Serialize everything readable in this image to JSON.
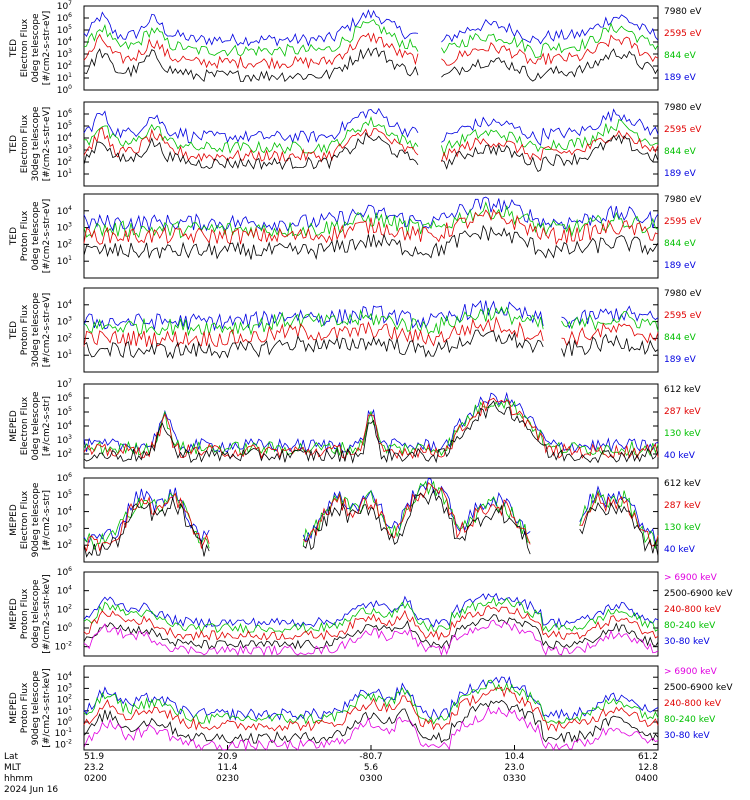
{
  "chart_data": [
    {
      "type": "line",
      "ylabel": [
        "TED",
        "Electron Flux",
        "0deg telescope",
        "[#/cm2-s-str-eV]"
      ],
      "y_scale": "log",
      "ylim_exp": [
        0,
        7
      ],
      "tick_exps": [
        0,
        1,
        2,
        3,
        4,
        5,
        6,
        7
      ],
      "legend": [
        {
          "label": "7980 eV",
          "color": "#000000"
        },
        {
          "label": "2595 eV",
          "color": "#e00000"
        },
        {
          "label": "844 eV",
          "color": "#00c000"
        },
        {
          "label": "189 eV",
          "color": "#0000e0"
        }
      ],
      "series": [
        {
          "color": "#0000e0",
          "level": 4.5,
          "profile": "ted_e"
        },
        {
          "color": "#00c000",
          "level": 3.6,
          "profile": "ted_e"
        },
        {
          "color": "#e00000",
          "level": 2.6,
          "profile": "ted_e"
        },
        {
          "color": "#000000",
          "level": 1.5,
          "profile": "ted_e"
        }
      ]
    },
    {
      "type": "line",
      "ylabel": [
        "TED",
        "Electron Flux",
        "30deg telescope",
        "[#/cm2-s-str-eV]"
      ],
      "y_scale": "log",
      "ylim_exp": [
        0,
        7
      ],
      "tick_exps": [
        1,
        2,
        3,
        4,
        5,
        6
      ],
      "legend": [
        {
          "label": "7980 eV",
          "color": "#000000"
        },
        {
          "label": "2595 eV",
          "color": "#e00000"
        },
        {
          "label": "844 eV",
          "color": "#00c000"
        },
        {
          "label": "189 eV",
          "color": "#0000e0"
        }
      ],
      "series": [
        {
          "color": "#0000e0",
          "level": 4.4,
          "profile": "ted_e"
        },
        {
          "color": "#00c000",
          "level": 3.5,
          "profile": "ted_e"
        },
        {
          "color": "#e00000",
          "level": 2.8,
          "profile": "ted_e"
        },
        {
          "color": "#000000",
          "level": 2.2,
          "profile": "ted_e"
        }
      ]
    },
    {
      "type": "line",
      "ylabel": [
        "TED",
        "Proton Flux",
        "0deg telescope",
        "[#/cm2-s-str-eV]"
      ],
      "y_scale": "log",
      "ylim_exp": [
        0,
        5
      ],
      "tick_exps": [
        1,
        2,
        3,
        4
      ],
      "legend": [
        {
          "label": "7980 eV",
          "color": "#000000"
        },
        {
          "label": "2595 eV",
          "color": "#e00000"
        },
        {
          "label": "844 eV",
          "color": "#00c000"
        },
        {
          "label": "189 eV",
          "color": "#0000e0"
        }
      ],
      "series": [
        {
          "color": "#0000e0",
          "level": 3.3,
          "profile": "ted_p"
        },
        {
          "color": "#00c000",
          "level": 2.9,
          "profile": "ted_p"
        },
        {
          "color": "#e00000",
          "level": 2.5,
          "profile": "ted_p"
        },
        {
          "color": "#000000",
          "level": 1.6,
          "profile": "ted_p"
        }
      ]
    },
    {
      "type": "line",
      "ylabel": [
        "TED",
        "Proton Flux",
        "30deg telescope",
        "[#/cm2-s-str-eV]"
      ],
      "y_scale": "log",
      "ylim_exp": [
        0,
        5
      ],
      "tick_exps": [
        1,
        2,
        3,
        4
      ],
      "legend": [
        {
          "label": "7980 eV",
          "color": "#000000"
        },
        {
          "label": "2595 eV",
          "color": "#e00000"
        },
        {
          "label": "844 eV",
          "color": "#00c000"
        },
        {
          "label": "189 eV",
          "color": "#0000e0"
        }
      ],
      "series": [
        {
          "color": "#0000e0",
          "level": 3.0,
          "profile": "ted_p30"
        },
        {
          "color": "#00c000",
          "level": 2.7,
          "profile": "ted_p30"
        },
        {
          "color": "#e00000",
          "level": 2.0,
          "profile": "ted_p30"
        },
        {
          "color": "#000000",
          "level": 1.3,
          "profile": "ted_p30"
        }
      ]
    },
    {
      "type": "line",
      "ylabel": [
        "MEPED",
        "Electron Flux",
        "0deg telescope",
        "[#/cm2-s-str]"
      ],
      "y_scale": "log",
      "ylim_exp": [
        1,
        7
      ],
      "tick_exps": [
        2,
        3,
        4,
        5,
        6,
        7
      ],
      "legend": [
        {
          "label": "612 keV",
          "color": "#000000"
        },
        {
          "label": "287 keV",
          "color": "#e00000"
        },
        {
          "label": "130 keV",
          "color": "#00c000"
        },
        {
          "label": "40 keV",
          "color": "#0000e0"
        }
      ],
      "series": [
        {
          "color": "#0000e0",
          "level": 2.6,
          "profile": "meped_e0"
        },
        {
          "color": "#00c000",
          "level": 2.4,
          "profile": "meped_e0"
        },
        {
          "color": "#e00000",
          "level": 2.2,
          "profile": "meped_e0"
        },
        {
          "color": "#000000",
          "level": 1.9,
          "profile": "meped_e0"
        }
      ]
    },
    {
      "type": "line",
      "ylabel": [
        "MEPED",
        "Electron Flux",
        "90deg telescope",
        "[#/cm2-s-str]"
      ],
      "y_scale": "log",
      "ylim_exp": [
        1,
        6
      ],
      "tick_exps": [
        2,
        3,
        4,
        5,
        6
      ],
      "legend": [
        {
          "label": "612 keV",
          "color": "#000000"
        },
        {
          "label": "287 keV",
          "color": "#e00000"
        },
        {
          "label": "130 keV",
          "color": "#00c000"
        },
        {
          "label": "40 keV",
          "color": "#0000e0"
        }
      ],
      "series": [
        {
          "color": "#0000e0",
          "level": 2.4,
          "profile": "meped_e90"
        },
        {
          "color": "#00c000",
          "level": 2.2,
          "profile": "meped_e90"
        },
        {
          "color": "#e00000",
          "level": 2.1,
          "profile": "meped_e90"
        },
        {
          "color": "#000000",
          "level": 1.7,
          "profile": "meped_e90"
        }
      ]
    },
    {
      "type": "line",
      "ylabel": [
        "MEPED",
        "Proton Flux",
        "0deg telescope",
        "[#/cm2-s-str-keV]"
      ],
      "y_scale": "log",
      "ylim_exp": [
        -3,
        6
      ],
      "tick_exps": [
        -2,
        0,
        2,
        4,
        6
      ],
      "legend": [
        {
          "label": "> 6900 keV",
          "color": "#e000e0"
        },
        {
          "label": "2500-6900 keV",
          "color": "#000000"
        },
        {
          "label": "240-800 keV",
          "color": "#e00000"
        },
        {
          "label": "80-240 keV",
          "color": "#00c000"
        },
        {
          "label": "30-80 keV",
          "color": "#0000e0"
        }
      ],
      "series": [
        {
          "color": "#0000e0",
          "level": 0.6,
          "profile": "meped_p0"
        },
        {
          "color": "#00c000",
          "level": 0.0,
          "profile": "meped_p0"
        },
        {
          "color": "#e00000",
          "level": -0.8,
          "profile": "meped_p0"
        },
        {
          "color": "#000000",
          "level": -1.8,
          "profile": "meped_p0"
        },
        {
          "color": "#e000e0",
          "level": -2.4,
          "profile": "meped_p0"
        }
      ]
    },
    {
      "type": "line",
      "ylabel": [
        "MEPED",
        "Proton Flux",
        "90deg telescope",
        "[#/cm2-s-str-keV]"
      ],
      "y_scale": "log",
      "ylim_exp": [
        -2.5,
        5
      ],
      "tick_exps": [
        -2,
        -1,
        0,
        1,
        2,
        3,
        4
      ],
      "legend": [
        {
          "label": "> 6900 keV",
          "color": "#e000e0"
        },
        {
          "label": "2500-6900 keV",
          "color": "#000000"
        },
        {
          "label": "240-800 keV",
          "color": "#e00000"
        },
        {
          "label": "80-240 keV",
          "color": "#00c000"
        },
        {
          "label": "30-80 keV",
          "color": "#0000e0"
        }
      ],
      "series": [
        {
          "color": "#0000e0",
          "level": 0.7,
          "profile": "meped_p90"
        },
        {
          "color": "#00c000",
          "level": 0.3,
          "profile": "meped_p90"
        },
        {
          "color": "#e00000",
          "level": -0.3,
          "profile": "meped_p90"
        },
        {
          "color": "#000000",
          "level": -1.4,
          "profile": "meped_p90"
        },
        {
          "color": "#e000e0",
          "level": -2.1,
          "profile": "meped_p90"
        }
      ]
    }
  ],
  "xaxis": {
    "row_labels": [
      "Lat",
      "MLT",
      "hhmm",
      "2024 Jun 16"
    ],
    "ticks": [
      {
        "frac": 0.0,
        "lat": "51.9",
        "mlt": "23.2",
        "hhmm": "0200"
      },
      {
        "frac": 0.25,
        "lat": "20.9",
        "mlt": "11.4",
        "hhmm": "0230"
      },
      {
        "frac": 0.5,
        "lat": "-80.7",
        "mlt": "5.6",
        "hhmm": "0300"
      },
      {
        "frac": 0.75,
        "lat": "10.4",
        "mlt": "23.0",
        "hhmm": "0330"
      },
      {
        "frac": 1.0,
        "lat": "61.2",
        "mlt": "12.8",
        "hhmm": "0400"
      }
    ]
  }
}
